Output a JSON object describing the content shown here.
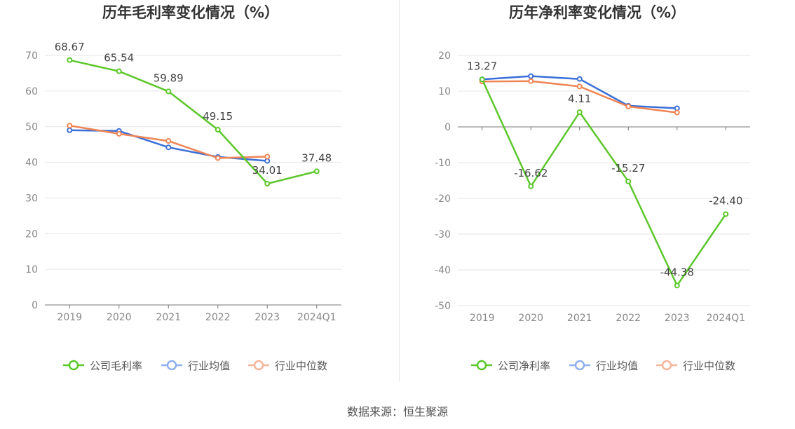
{
  "source": "数据来源：恒生聚源",
  "colors": {
    "company": "#5cc72b",
    "avg": "#3a6fd8",
    "median": "#ef8454",
    "legend_avg": "#8fb0ee",
    "legend_median": "#f6b599"
  },
  "chart_data": [
    {
      "type": "line",
      "title": "历年毛利率变化情况（%）",
      "categories": [
        "2019",
        "2020",
        "2021",
        "2022",
        "2023",
        "2024Q1"
      ],
      "ylim": [
        0,
        70
      ],
      "yticks": [
        0,
        10,
        20,
        30,
        40,
        50,
        60,
        70
      ],
      "series": [
        {
          "name": "公司毛利率",
          "key": "company",
          "values": [
            68.67,
            65.54,
            59.89,
            49.15,
            34.01,
            37.48
          ],
          "labels": [
            "68.67",
            "65.54",
            "59.89",
            "49.15",
            "34.01",
            "37.48"
          ]
        },
        {
          "name": "行业均值",
          "key": "avg",
          "values": [
            49.0,
            48.8,
            44.2,
            41.5,
            40.4,
            null
          ]
        },
        {
          "name": "行业中位数",
          "key": "median",
          "values": [
            50.3,
            48.0,
            46.0,
            41.2,
            41.6,
            null
          ]
        }
      ]
    },
    {
      "type": "line",
      "title": "历年净利率变化情况（%）",
      "categories": [
        "2019",
        "2020",
        "2021",
        "2022",
        "2023",
        "2024Q1"
      ],
      "ylim": [
        -50,
        20
      ],
      "yticks": [
        -50,
        -40,
        -30,
        -20,
        -10,
        0,
        10,
        20
      ],
      "series": [
        {
          "name": "公司净利率",
          "key": "company",
          "values": [
            13.27,
            -16.62,
            4.11,
            -15.27,
            -44.38,
            -24.4
          ],
          "labels": [
            "13.27",
            "-16.62",
            "4.11",
            "-15.27",
            "-44.38",
            "-24.40"
          ]
        },
        {
          "name": "行业均值",
          "key": "avg",
          "values": [
            13.3,
            14.2,
            13.4,
            5.9,
            5.2,
            null
          ]
        },
        {
          "name": "行业中位数",
          "key": "median",
          "values": [
            12.7,
            12.8,
            11.3,
            5.7,
            4.0,
            null
          ]
        }
      ]
    }
  ]
}
